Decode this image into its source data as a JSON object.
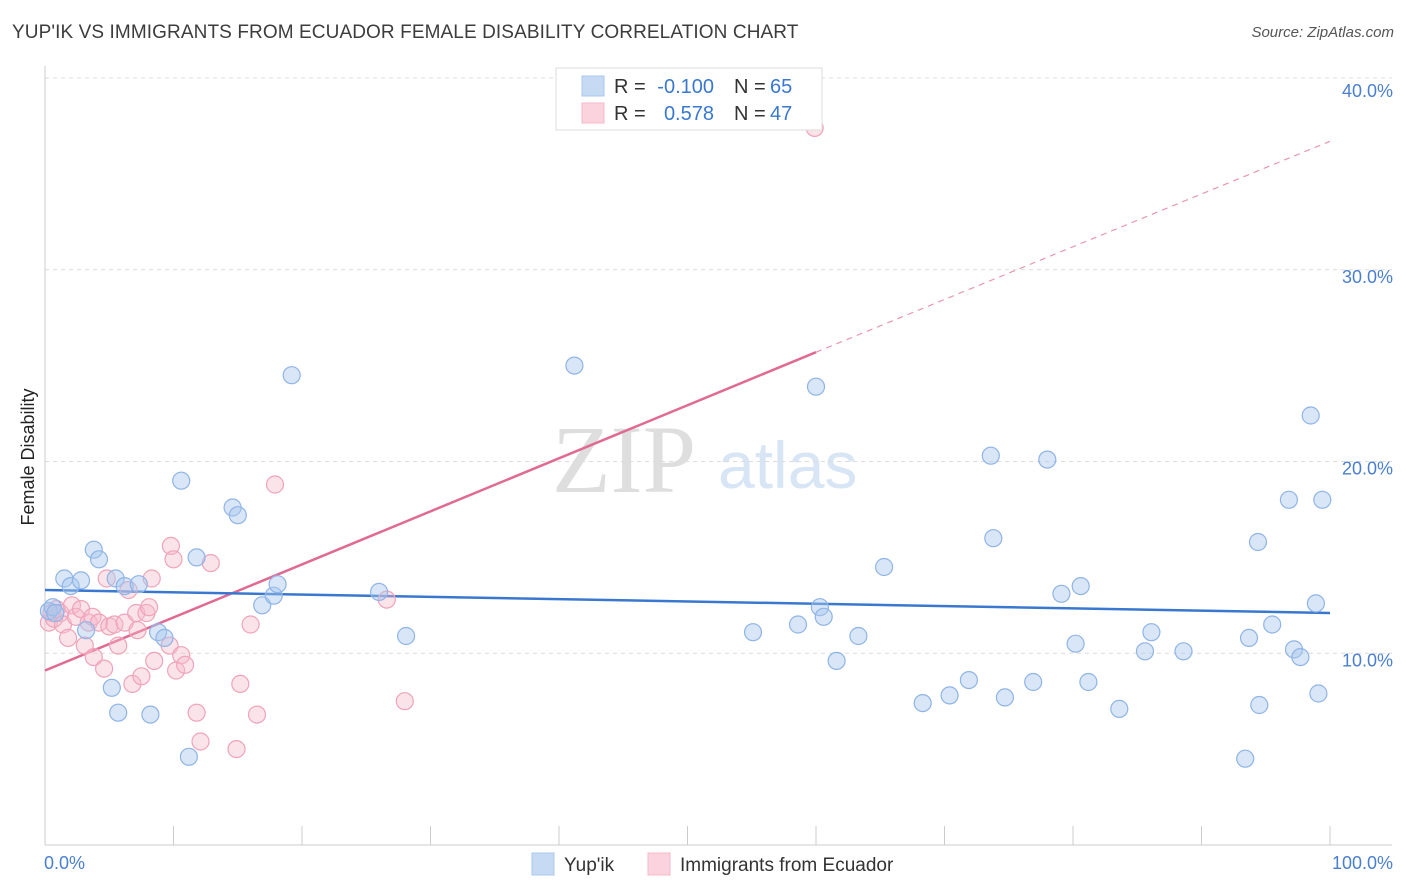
{
  "title": "YUP'IK VS IMMIGRANTS FROM ECUADOR FEMALE DISABILITY CORRELATION CHART",
  "source": "Source: ZipAtlas.com",
  "watermark": {
    "zip": "ZIP",
    "atlas": "atlas"
  },
  "legend": {
    "rows": [
      {
        "r_label": "R =",
        "r_value": "-0.100",
        "n_label": "N =",
        "n_value": "65"
      },
      {
        "r_label": "R =",
        "r_value": "0.578",
        "n_label": "N =",
        "n_value": "47"
      }
    ]
  },
  "bottom_legend": [
    "Yup'ik",
    "Immigrants from Ecuador"
  ],
  "chart_data": {
    "type": "scatter",
    "title": "YUP'IK VS IMMIGRANTS FROM ECUADOR FEMALE DISABILITY CORRELATION CHART",
    "xlabel": "",
    "ylabel": "Female Disability",
    "xlim": [
      0,
      100
    ],
    "ylim": [
      0,
      40
    ],
    "x_tick_labels": [
      "0.0%",
      "100.0%"
    ],
    "y_ticks": [
      10,
      20,
      30,
      40
    ],
    "y_tick_labels": [
      "10.0%",
      "20.0%",
      "30.0%",
      "40.0%"
    ],
    "grid": true,
    "legend_position": "top-center",
    "colors": {
      "yupik": "#a9c7ee",
      "yupik_line": "#3a78d0",
      "ecuador": "#f5b8cb",
      "ecuador_line": "#e06a92",
      "tick": "#4a7fd0"
    },
    "series": [
      {
        "name": "Yup'ik",
        "r": -0.1,
        "n": 65,
        "trend": {
          "x": [
            0,
            100
          ],
          "y": [
            13.3,
            12.1
          ]
        },
        "points": [
          [
            0.3,
            12.2
          ],
          [
            0.6,
            12.4
          ],
          [
            1.5,
            13.9
          ],
          [
            2.0,
            13.5
          ],
          [
            2.8,
            13.8
          ],
          [
            3.2,
            11.2
          ],
          [
            3.8,
            15.4
          ],
          [
            4.2,
            14.9
          ],
          [
            5.2,
            8.2
          ],
          [
            5.5,
            13.9
          ],
          [
            5.7,
            6.9
          ],
          [
            6.2,
            13.5
          ],
          [
            7.3,
            13.6
          ],
          [
            8.2,
            6.8
          ],
          [
            8.8,
            11.1
          ],
          [
            9.3,
            10.8
          ],
          [
            10.6,
            19.0
          ],
          [
            11.8,
            15.0
          ],
          [
            11.2,
            4.6
          ],
          [
            14.6,
            17.6
          ],
          [
            15.0,
            17.2
          ],
          [
            16.9,
            12.5
          ],
          [
            17.8,
            13.0
          ],
          [
            18.1,
            13.6
          ],
          [
            19.2,
            24.5
          ],
          [
            26.0,
            13.2
          ],
          [
            28.1,
            10.9
          ],
          [
            41.2,
            25.0
          ],
          [
            55.1,
            11.1
          ],
          [
            58.6,
            11.5
          ],
          [
            60.0,
            23.9
          ],
          [
            60.3,
            12.4
          ],
          [
            60.6,
            11.9
          ],
          [
            61.6,
            9.6
          ],
          [
            63.3,
            10.9
          ],
          [
            65.3,
            14.5
          ],
          [
            68.3,
            7.4
          ],
          [
            70.4,
            7.8
          ],
          [
            71.9,
            8.6
          ],
          [
            73.6,
            20.3
          ],
          [
            73.8,
            16.0
          ],
          [
            74.7,
            7.7
          ],
          [
            76.9,
            8.5
          ],
          [
            78.0,
            20.1
          ],
          [
            79.1,
            13.1
          ],
          [
            80.2,
            10.5
          ],
          [
            80.6,
            13.5
          ],
          [
            81.2,
            8.5
          ],
          [
            83.6,
            7.1
          ],
          [
            85.6,
            10.1
          ],
          [
            86.1,
            11.1
          ],
          [
            88.6,
            10.1
          ],
          [
            93.7,
            10.8
          ],
          [
            93.4,
            4.5
          ],
          [
            94.4,
            15.8
          ],
          [
            94.5,
            7.3
          ],
          [
            95.5,
            11.5
          ],
          [
            96.8,
            18.0
          ],
          [
            97.2,
            10.2
          ],
          [
            97.7,
            9.8
          ],
          [
            98.5,
            22.4
          ],
          [
            98.9,
            12.6
          ],
          [
            99.1,
            7.9
          ],
          [
            99.4,
            18.0
          ],
          [
            0.8,
            12.1
          ]
        ]
      },
      {
        "name": "Immigrants from Ecuador",
        "r": 0.578,
        "n": 47,
        "trend": {
          "x": [
            0,
            60
          ],
          "y": [
            9.1,
            25.7
          ]
        },
        "trend_extension": {
          "x": [
            60,
            100
          ],
          "y": [
            25.7,
            36.7
          ]
        },
        "points": [
          [
            0.3,
            11.6
          ],
          [
            0.5,
            12.1
          ],
          [
            0.7,
            11.8
          ],
          [
            0.9,
            12.3
          ],
          [
            1.2,
            12.1
          ],
          [
            1.4,
            11.5
          ],
          [
            1.8,
            10.8
          ],
          [
            2.1,
            12.5
          ],
          [
            2.4,
            11.9
          ],
          [
            2.8,
            12.3
          ],
          [
            3.1,
            10.4
          ],
          [
            3.4,
            11.6
          ],
          [
            3.7,
            11.9
          ],
          [
            3.8,
            9.8
          ],
          [
            4.2,
            11.6
          ],
          [
            4.6,
            9.2
          ],
          [
            4.8,
            13.9
          ],
          [
            5.0,
            11.4
          ],
          [
            5.4,
            11.5
          ],
          [
            5.7,
            10.4
          ],
          [
            6.2,
            11.6
          ],
          [
            6.5,
            13.3
          ],
          [
            6.8,
            8.4
          ],
          [
            7.1,
            12.1
          ],
          [
            7.2,
            11.2
          ],
          [
            7.5,
            8.8
          ],
          [
            7.9,
            12.1
          ],
          [
            8.1,
            12.4
          ],
          [
            8.3,
            13.9
          ],
          [
            8.5,
            9.6
          ],
          [
            9.7,
            10.4
          ],
          [
            9.8,
            15.6
          ],
          [
            10.0,
            14.9
          ],
          [
            10.2,
            9.1
          ],
          [
            10.6,
            9.9
          ],
          [
            10.9,
            9.4
          ],
          [
            11.8,
            6.9
          ],
          [
            12.1,
            5.4
          ],
          [
            12.9,
            14.7
          ],
          [
            14.9,
            5.0
          ],
          [
            15.2,
            8.4
          ],
          [
            16.0,
            11.5
          ],
          [
            16.5,
            6.8
          ],
          [
            17.9,
            18.8
          ],
          [
            26.6,
            12.8
          ],
          [
            28.0,
            7.5
          ],
          [
            59.9,
            37.4
          ]
        ]
      }
    ]
  }
}
